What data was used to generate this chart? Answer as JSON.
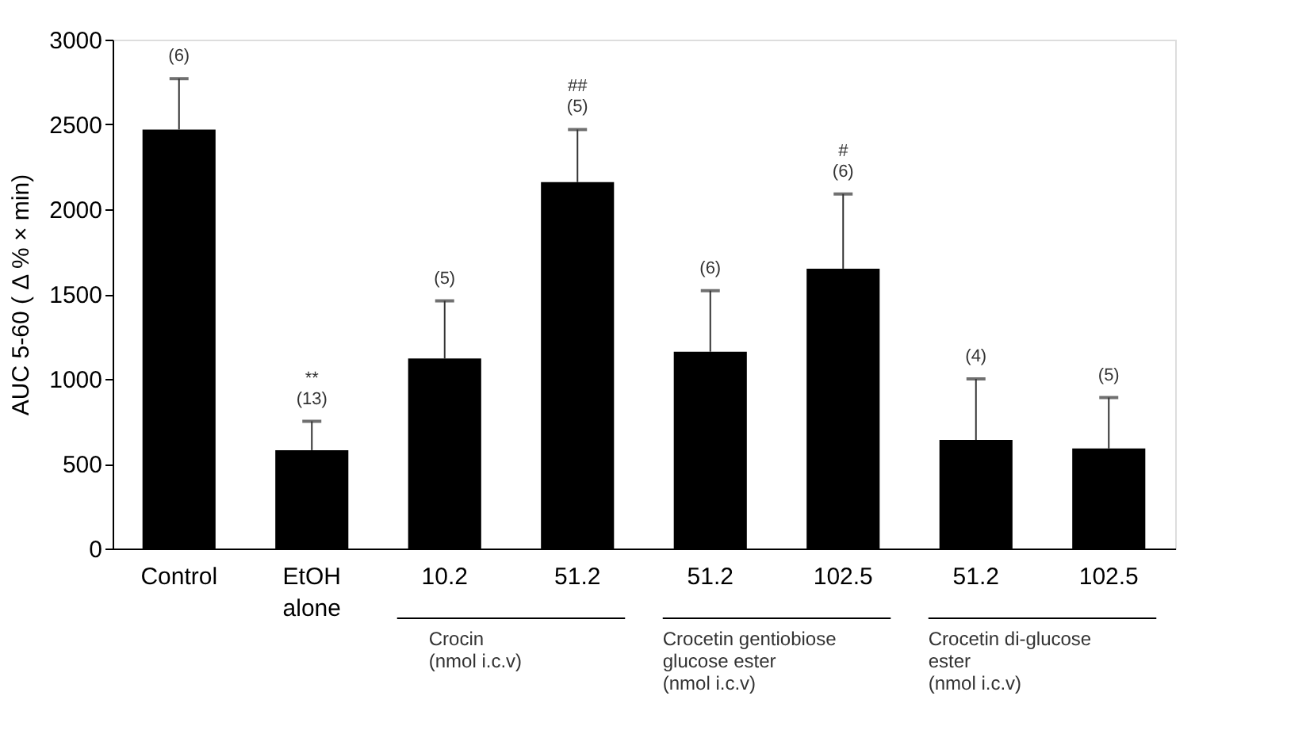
{
  "chart_data": {
    "type": "bar",
    "ylabel": "AUC 5-60 ( Δ % × min)",
    "categories": [
      "Control",
      "EtOH alone",
      "10.2",
      "51.2",
      "51.2",
      "102.5",
      "51.2",
      "102.5"
    ],
    "values": [
      2470,
      580,
      1120,
      2160,
      1160,
      1650,
      640,
      590
    ],
    "errors": [
      [
        2470,
        2770
      ],
      [
        580,
        750
      ],
      [
        1120,
        1460
      ],
      [
        2160,
        2470
      ],
      [
        1160,
        1520
      ],
      [
        1650,
        2090
      ],
      [
        640,
        1000
      ],
      [
        590,
        890
      ]
    ],
    "color": "#000000",
    "ylim": [
      0,
      3000
    ],
    "yticks": [
      0,
      500,
      1000,
      1500,
      2000,
      2500,
      3000
    ],
    "grid": false,
    "annotations": [
      "(6)",
      "**\n(13)",
      "(5)",
      "##\n(5)",
      "(6)",
      "#\n(6)",
      "(4)",
      "(5)",
      "Crocin\n(nmol i.c.v)",
      "Crocetin gentiobiose\nglucose ester\n(nmol i.c.v)",
      "Crocetin di-glucose\nester\n(nmol i.c.v)"
    ]
  }
}
